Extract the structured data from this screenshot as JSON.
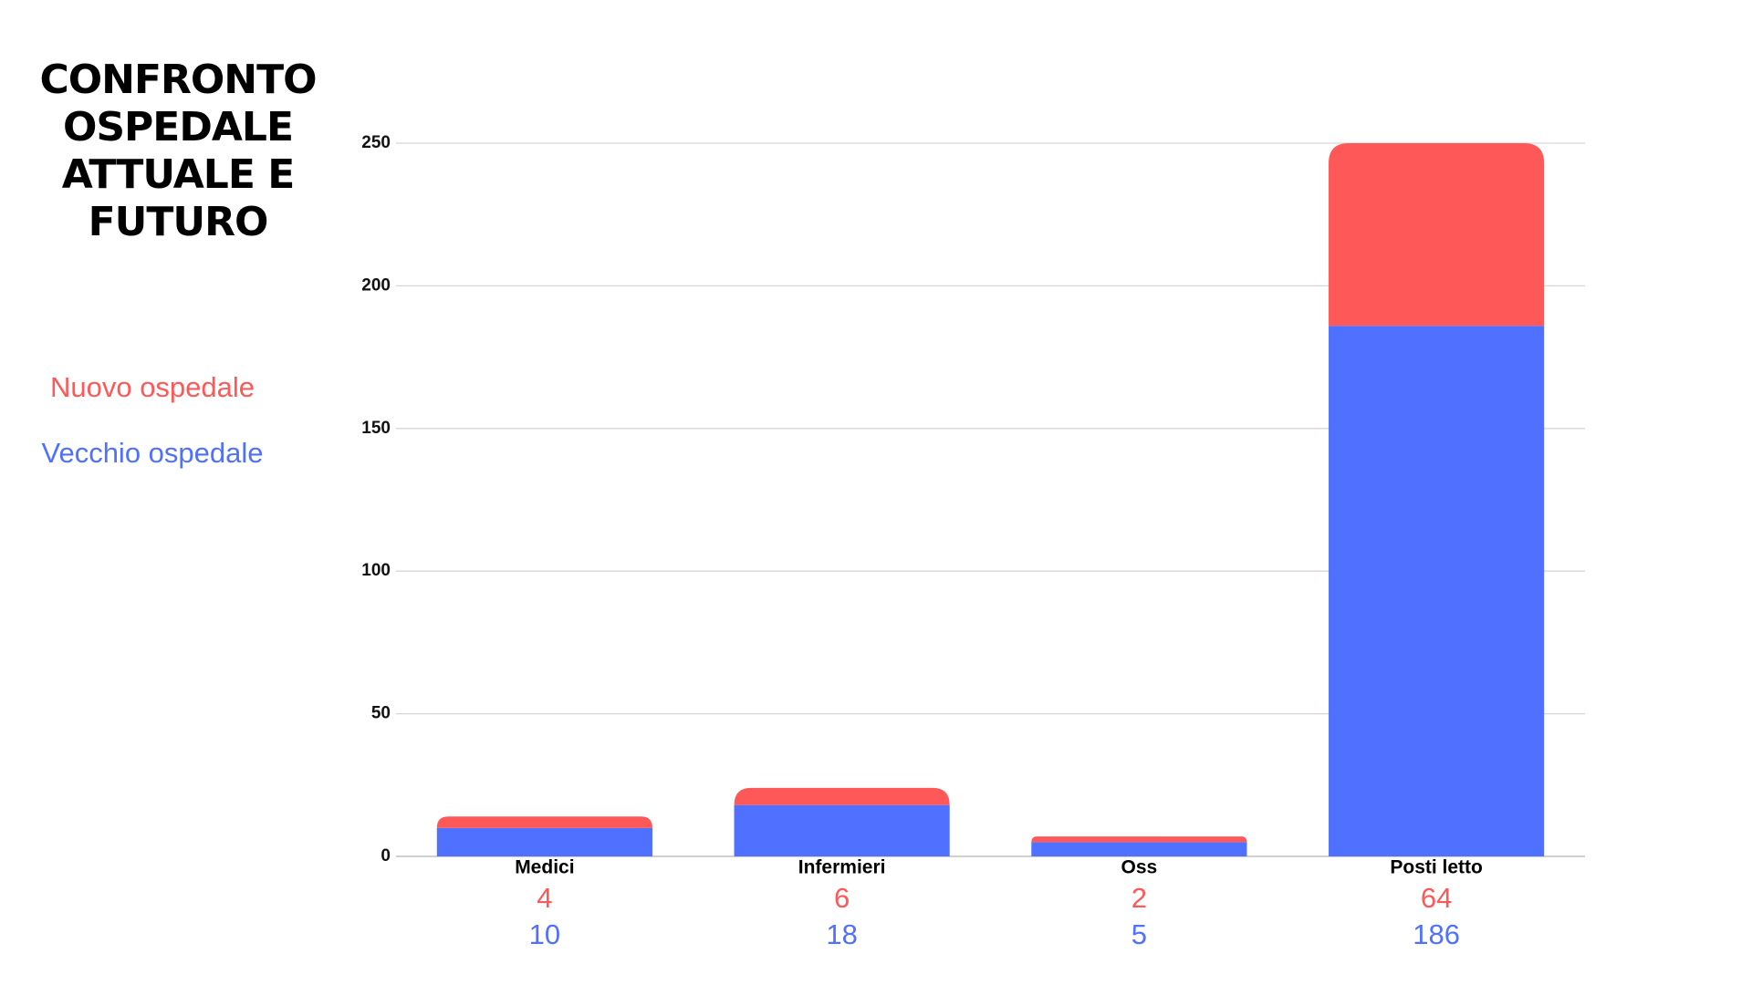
{
  "chart_data": {
    "type": "stacked_bar",
    "title": "CONFRONTO OSPEDALE ATTUALE E FUTURO",
    "categories": [
      "Medici",
      "Infermieri",
      "Oss",
      "Posti letto"
    ],
    "series": [
      {
        "name": "Vecchio ospedale",
        "color": "#5070ff",
        "values": [
          10,
          18,
          5,
          186
        ]
      },
      {
        "name": "Nuovo ospedale",
        "color": "#ff5858",
        "values": [
          4,
          6,
          2,
          64
        ]
      }
    ],
    "ylim": [
      0,
      250
    ],
    "yticks": [
      0,
      50,
      100,
      150,
      200,
      250
    ],
    "grid": true,
    "legend": "left"
  }
}
